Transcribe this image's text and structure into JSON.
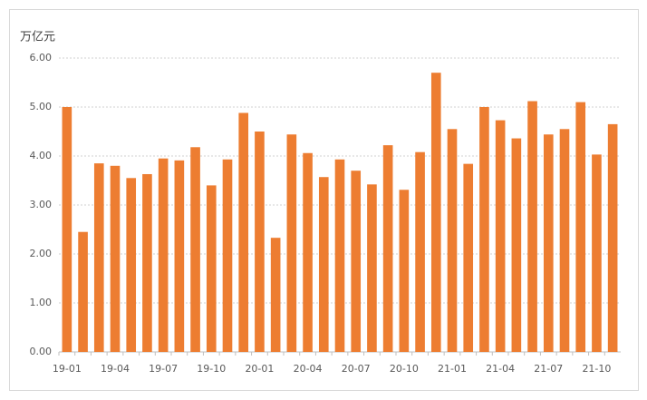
{
  "chart_data": {
    "type": "bar",
    "y_label": "万亿元",
    "color": "#ed7d31",
    "categories": [
      "19-01",
      null,
      null,
      "19-04",
      null,
      null,
      "19-07",
      null,
      null,
      "19-10",
      null,
      null,
      "20-01",
      null,
      null,
      "20-04",
      null,
      null,
      "20-07",
      null,
      null,
      "20-10",
      null,
      null,
      "21-01",
      null,
      null,
      "21-04",
      null,
      null,
      "21-07",
      null,
      null,
      "21-10",
      null
    ],
    "values": [
      5.0,
      2.45,
      3.85,
      3.8,
      3.55,
      3.63,
      3.95,
      3.91,
      4.18,
      3.4,
      3.93,
      4.88,
      4.5,
      2.33,
      4.44,
      4.06,
      3.57,
      3.93,
      3.7,
      3.42,
      4.22,
      3.31,
      4.08,
      5.7,
      4.55,
      3.84,
      5.0,
      4.73,
      4.36,
      5.12,
      4.44,
      4.55,
      5.1,
      4.03,
      4.65
    ],
    "ylim": [
      0,
      6
    ],
    "yticks": [
      {
        "value": 0,
        "label": "0.00"
      },
      {
        "value": 1,
        "label": "1.00"
      },
      {
        "value": 2,
        "label": "2.00"
      },
      {
        "value": 3,
        "label": "3.00"
      },
      {
        "value": 4,
        "label": "4.00"
      },
      {
        "value": 5,
        "label": "5.00"
      },
      {
        "value": 6,
        "label": "6.00"
      }
    ],
    "grid": true
  }
}
